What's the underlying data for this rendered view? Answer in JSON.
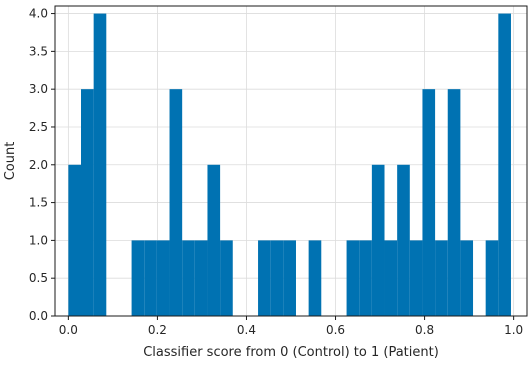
{
  "chart_data": {
    "type": "bar",
    "style": "histogram",
    "xlabel": "Classifier score from 0 (Control) to 1 (Patient)",
    "ylabel": "Count",
    "xlim": [
      -0.03,
      1.03
    ],
    "ylim": [
      0,
      4.1
    ],
    "x_ticks": [
      0.0,
      0.2,
      0.4,
      0.6,
      0.8,
      1.0
    ],
    "x_tick_labels": [
      "0.0",
      "0.2",
      "0.4",
      "0.6",
      "0.8",
      "1.0"
    ],
    "y_ticks": [
      0.0,
      0.5,
      1.0,
      1.5,
      2.0,
      2.5,
      3.0,
      3.5,
      4.0
    ],
    "y_tick_labels": [
      "0.0",
      "0.5",
      "1.0",
      "1.5",
      "2.0",
      "2.5",
      "3.0",
      "3.5",
      "4.0"
    ],
    "grid": true,
    "bar_color": "#0072B2",
    "bin_edges": [
      0.0,
      0.0284,
      0.0568,
      0.0852,
      0.1136,
      0.142,
      0.1704,
      0.1988,
      0.2272,
      0.2556,
      0.284,
      0.3124,
      0.3408,
      0.3692,
      0.3976,
      0.426,
      0.4544,
      0.4828,
      0.5112,
      0.5396,
      0.568,
      0.5964,
      0.6248,
      0.6532,
      0.6816,
      0.71,
      0.7384,
      0.7668,
      0.7952,
      0.8236,
      0.852,
      0.8804,
      0.9088,
      0.9372,
      0.9656,
      0.994
    ],
    "counts": [
      2,
      3,
      4,
      0,
      0,
      1,
      1,
      1,
      3,
      1,
      1,
      2,
      1,
      0,
      0,
      1,
      1,
      1,
      0,
      1,
      0,
      0,
      1,
      1,
      2,
      1,
      2,
      1,
      3,
      1,
      3,
      1,
      0,
      1,
      4
    ]
  }
}
